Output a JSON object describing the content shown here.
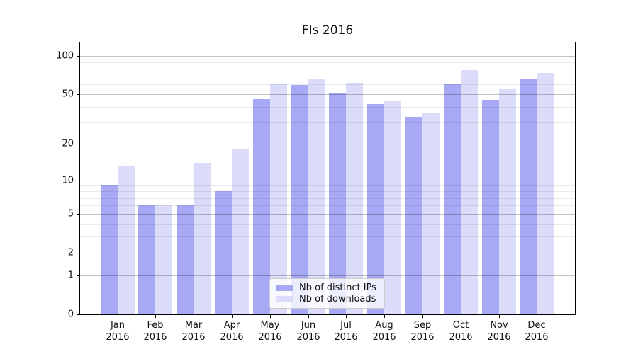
{
  "chart_data": {
    "type": "bar",
    "title": "FIs 2016",
    "categories": [
      "Jan",
      "Feb",
      "Mar",
      "Apr",
      "May",
      "Jun",
      "Jul",
      "Aug",
      "Sep",
      "Oct",
      "Nov",
      "Dec"
    ],
    "x_tick_year": "2016",
    "series": [
      {
        "name": "Nb of distinct IPs",
        "color": "#a7a9f5",
        "values": [
          9,
          6,
          6,
          8,
          46,
          59,
          51,
          42,
          33,
          60,
          45,
          66
        ]
      },
      {
        "name": "Nb of downloads",
        "color": "#dadcf9",
        "values": [
          13,
          6,
          14,
          18,
          61,
          66,
          62,
          44,
          36,
          78,
          55,
          74
        ]
      }
    ],
    "y_axis": {
      "scale": "log1p",
      "min": 0,
      "max": 128,
      "tick_values": [
        0,
        1,
        2,
        5,
        10,
        20,
        50,
        100
      ],
      "tick_labels": [
        "0",
        "1",
        "2",
        "5",
        "10",
        "20",
        "50",
        "100"
      ],
      "minor_gridline_values": [
        3,
        4,
        6,
        7,
        8,
        9,
        30,
        40,
        60,
        70,
        80,
        90
      ]
    },
    "legend": {
      "position": "lower center"
    },
    "grid": true,
    "colors": {
      "major_grid": "#c3c3c3",
      "minor_grid": "#ebebeb",
      "spine": "#000000",
      "text": "#111111",
      "background": "#ffffff"
    }
  }
}
